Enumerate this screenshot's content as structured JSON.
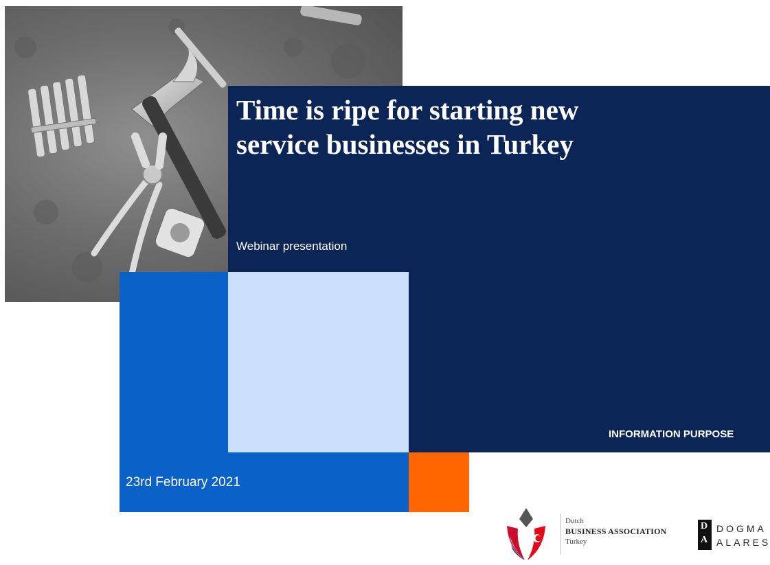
{
  "slide": {
    "title_line1": "Time is ripe for starting new",
    "title_line2": "service businesses in Turkey",
    "subtitle": "Webinar presentation",
    "tag": "INFORMATION PURPOSE",
    "date": "23rd February 2021"
  },
  "logos": {
    "dba": {
      "line1": "Dutch",
      "line2": "BUSINESS ASSOCIATION",
      "line3": "Turkey"
    },
    "dogma": {
      "mark_top": "D",
      "mark_bottom": "A",
      "line1": "DOGMA",
      "line2": "ALARES"
    }
  },
  "colors": {
    "navy": "#0c2557",
    "blue": "#0a62c9",
    "light_blue": "#c9dffa",
    "orange": "#ff6600"
  },
  "photo": {
    "subject": "hand-tools-photo"
  }
}
